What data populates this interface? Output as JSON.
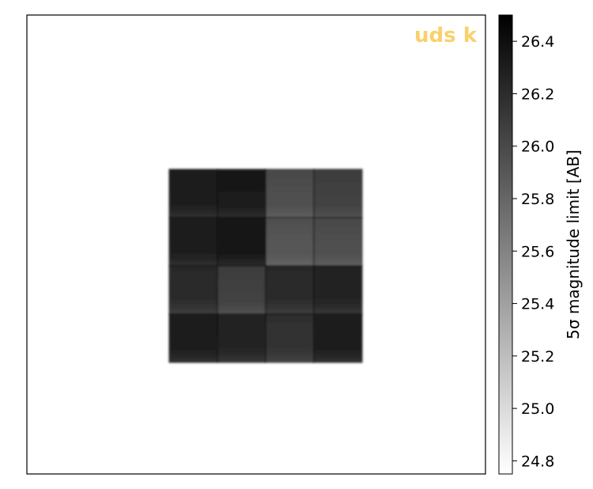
{
  "chart_data": {
    "type": "heatmap",
    "title": "uds k",
    "title_color": "#f9d16b",
    "colormap": "Greys",
    "colorbar": {
      "label": "5σ magnitude limit [AB]",
      "vmin": 24.75,
      "vmax": 26.5,
      "ticks": [
        24.8,
        25.0,
        25.2,
        25.4,
        25.6,
        25.8,
        26.0,
        26.2,
        26.4
      ],
      "tick_labels": [
        "24.8",
        "25.0",
        "25.2",
        "25.4",
        "25.6",
        "25.8",
        "26.0",
        "26.2",
        "26.4"
      ]
    },
    "tiles": {
      "rows": 4,
      "cols": 4,
      "depth_values": [
        [
          26.3,
          26.32,
          25.95,
          26.05
        ],
        [
          26.3,
          26.35,
          25.9,
          25.95
        ],
        [
          26.2,
          26.05,
          26.2,
          26.25
        ],
        [
          26.3,
          26.25,
          26.15,
          26.3
        ]
      ]
    },
    "background_value": "none"
  }
}
